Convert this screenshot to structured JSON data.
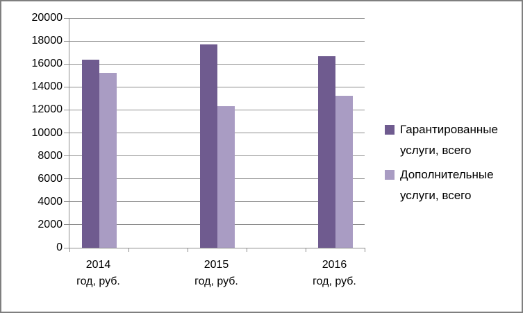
{
  "chart_data": {
    "type": "bar",
    "title": "",
    "xlabel": "",
    "ylabel": "",
    "categories": [
      "2014 год, руб.",
      "2015 год, руб.",
      "2016 год, руб."
    ],
    "category_label_lines": [
      [
        "2014",
        "год, руб."
      ],
      [
        "2015",
        "год, руб."
      ],
      [
        "2016",
        "год, руб."
      ]
    ],
    "series": [
      {
        "name": "Гарантированные услуги, всего",
        "label_lines": [
          "Гарантированные",
          "услуги, всего"
        ],
        "color": "#6F5B8F",
        "values": [
          16400,
          17700,
          16650
        ]
      },
      {
        "name": "Дополнительные услуги, всего",
        "label_lines": [
          "Дополнительные",
          "услуги, всего"
        ],
        "color": "#A99CC3",
        "values": [
          15250,
          12300,
          13250
        ]
      }
    ],
    "ylim": [
      0,
      20000
    ],
    "yticks": [
      0,
      2000,
      4000,
      6000,
      8000,
      10000,
      12000,
      14000,
      16000,
      18000,
      20000
    ],
    "ytick_labels": [
      "0",
      "2000",
      "4000",
      "6000",
      "8000",
      "10000",
      "12000",
      "14000",
      "16000",
      "18000",
      "20000"
    ],
    "grid": true,
    "legend_position": "right"
  },
  "colors": {
    "axis": "#8C8C8C",
    "gridline": "#8C8C8C",
    "frame_border": "#7F7F7F",
    "background": "#FFFFFF",
    "text": "#000000"
  }
}
